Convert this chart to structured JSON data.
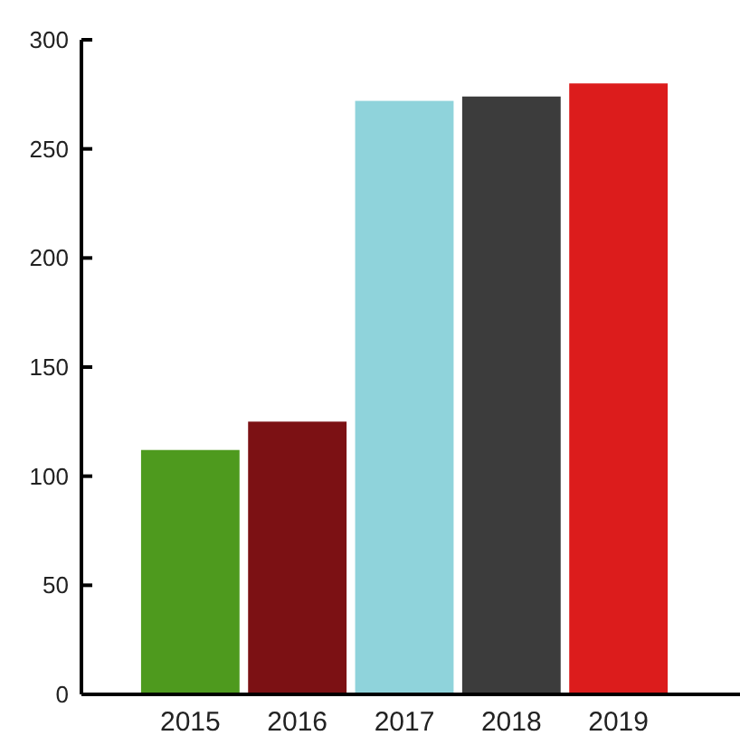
{
  "chart_data": {
    "type": "bar",
    "categories": [
      "2015",
      "2016",
      "2017",
      "2018",
      "2019"
    ],
    "values": [
      112,
      125,
      272,
      274,
      280
    ],
    "colors": [
      "#4e9a1e",
      "#7c1114",
      "#8fd3db",
      "#3c3c3c",
      "#dc1c1c"
    ],
    "ylim": [
      0,
      300
    ],
    "yticks": [
      0,
      50,
      100,
      150,
      200,
      250,
      300
    ],
    "grid": false
  }
}
